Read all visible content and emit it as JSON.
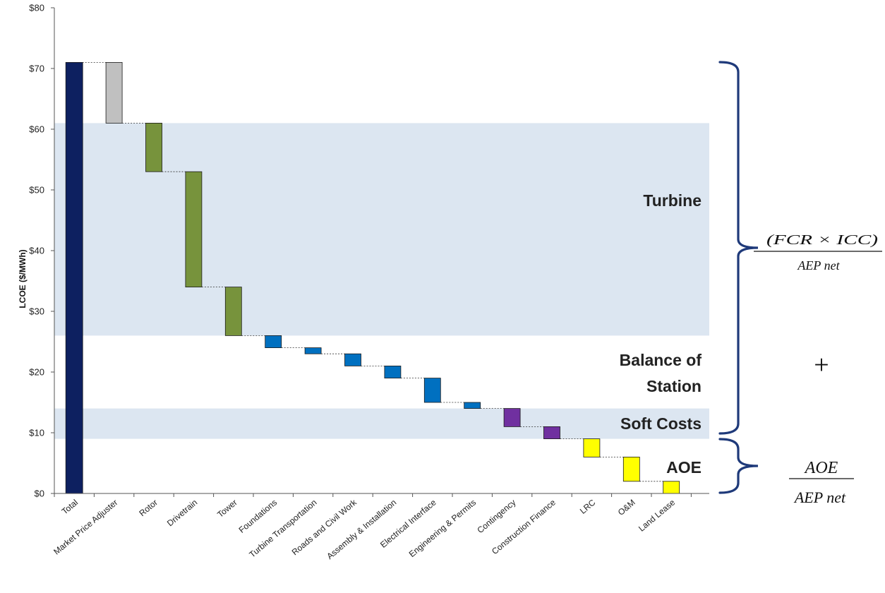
{
  "chart_data": {
    "type": "bar",
    "subtype": "waterfall",
    "ylabel": "LCOE ($/MWh)",
    "ylim": [
      0,
      80
    ],
    "yticks": [
      "$0",
      "$10",
      "$20",
      "$30",
      "$40",
      "$50",
      "$60",
      "$70",
      "$80"
    ],
    "grid": false,
    "categories": [
      "Total",
      "Market Price Adjuster",
      "Rotor",
      "Drivetrain",
      "Tower",
      "Foundations",
      "Turbine Transportation",
      "Roads and Civil Work",
      "Assembly & Installation",
      "Electrical Interface",
      "Engineering & Permits",
      "Contingency",
      "Construction Finance",
      "LRC",
      "O&M",
      "Land Lease"
    ],
    "bars": [
      {
        "category": "Total",
        "low": 0,
        "high": 71,
        "color": "#0d2060"
      },
      {
        "category": "Market Price Adjuster",
        "low": 61,
        "high": 71,
        "color": "#c0c0c0"
      },
      {
        "category": "Rotor",
        "low": 53,
        "high": 61,
        "color": "#77933c"
      },
      {
        "category": "Drivetrain",
        "low": 34,
        "high": 53,
        "color": "#77933c"
      },
      {
        "category": "Tower",
        "low": 26,
        "high": 34,
        "color": "#77933c"
      },
      {
        "category": "Foundations",
        "low": 24,
        "high": 26,
        "color": "#0070c0"
      },
      {
        "category": "Turbine Transportation",
        "low": 23,
        "high": 24,
        "color": "#0070c0"
      },
      {
        "category": "Roads and Civil Work",
        "low": 21,
        "high": 23,
        "color": "#0070c0"
      },
      {
        "category": "Assembly & Installation",
        "low": 19,
        "high": 21,
        "color": "#0070c0"
      },
      {
        "category": "Electrical Interface",
        "low": 15,
        "high": 19,
        "color": "#0070c0"
      },
      {
        "category": "Engineering & Permits",
        "low": 14,
        "high": 15,
        "color": "#0070c0"
      },
      {
        "category": "Contingency",
        "low": 11,
        "high": 14,
        "color": "#7030a0"
      },
      {
        "category": "Construction Finance",
        "low": 9,
        "high": 11,
        "color": "#7030a0"
      },
      {
        "category": "LRC",
        "low": 6,
        "high": 9,
        "color": "#ffff00"
      },
      {
        "category": "O&M",
        "low": 2,
        "high": 6,
        "color": "#ffff00"
      },
      {
        "category": "Land Lease",
        "low": 0,
        "high": 2,
        "color": "#ffff00"
      }
    ],
    "bands": [
      {
        "label": "Turbine",
        "from": 26,
        "to": 61,
        "shaded": true
      },
      {
        "label": "Balance of Station",
        "from": 14,
        "to": 26,
        "shaded": false
      },
      {
        "label": "Soft Costs",
        "from": 9,
        "to": 14,
        "shaded": true
      },
      {
        "label": "AOE",
        "from": 0,
        "to": 9,
        "shaded": false
      }
    ],
    "band_color": "#dce6f1",
    "brace_color": "#1f3a7a",
    "annotations": {
      "capital_formula": {
        "numerator": "(FCR × ICC)",
        "denominator": "AEP net"
      },
      "plus": "+",
      "operating_formula": {
        "numerator": "AOE",
        "denominator": "AEP net"
      }
    }
  }
}
